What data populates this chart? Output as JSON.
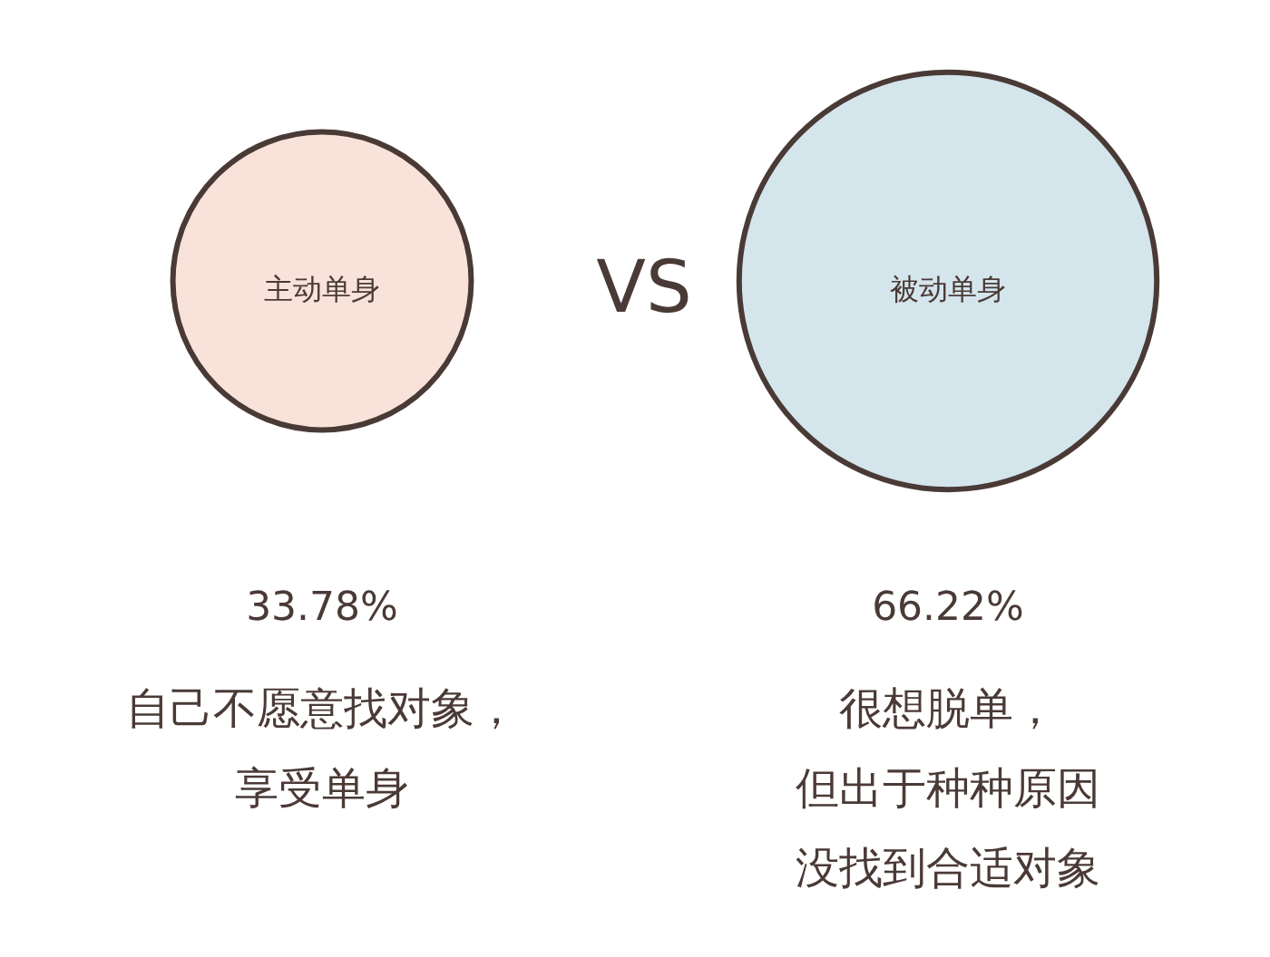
{
  "chart_data": {
    "type": "other",
    "categories": [
      "主动单身",
      "被动单身"
    ],
    "values": [
      33.78,
      66.22
    ],
    "colors": [
      "#f8e2da",
      "#d4e5ec"
    ],
    "value_labels": [
      "33.78%",
      "66.22%"
    ],
    "annotations": [
      "VS",
      "自己不愿意找对象，",
      "享受单身",
      "很想脱单，",
      "但出于种种原因",
      "没找到合适对象"
    ]
  }
}
